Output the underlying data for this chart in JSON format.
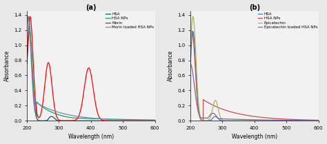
{
  "panel_a": {
    "title": "(a)",
    "xlabel": "Wavelength (nm)",
    "ylabel": "Absorbance",
    "xlim": [
      200,
      600
    ],
    "ylim": [
      0,
      1.45
    ],
    "yticks": [
      0.0,
      0.2,
      0.4,
      0.6,
      0.8,
      1.0,
      1.2,
      1.4
    ],
    "xticks": [
      200,
      300,
      400,
      500,
      600
    ],
    "legend": [
      "HSA",
      "HSA NPs",
      "Morin",
      "Morin loaded HSA NPs"
    ],
    "colors": [
      "#006060",
      "#00b050",
      "#ff0000",
      "#7f7fbf"
    ]
  },
  "panel_b": {
    "title": "(b)",
    "xlabel": "Wavelength (nm)",
    "ylabel": "Absorbance",
    "xlim": [
      200,
      600
    ],
    "ylim": [
      0,
      1.45
    ],
    "yticks": [
      0.0,
      0.2,
      0.4,
      0.6,
      0.8,
      1.0,
      1.2,
      1.4
    ],
    "xticks": [
      200,
      300,
      400,
      500,
      600
    ],
    "legend": [
      "HSA",
      "HSA NPs",
      "Epicatechin",
      "Epicatechin loaded HSA NPs"
    ],
    "colors": [
      "#4472c4",
      "#c0504d",
      "#9bbb59",
      "#8064a2"
    ]
  },
  "bg_color": "#f2f2f2",
  "fig_bg": "#e8e8e8"
}
